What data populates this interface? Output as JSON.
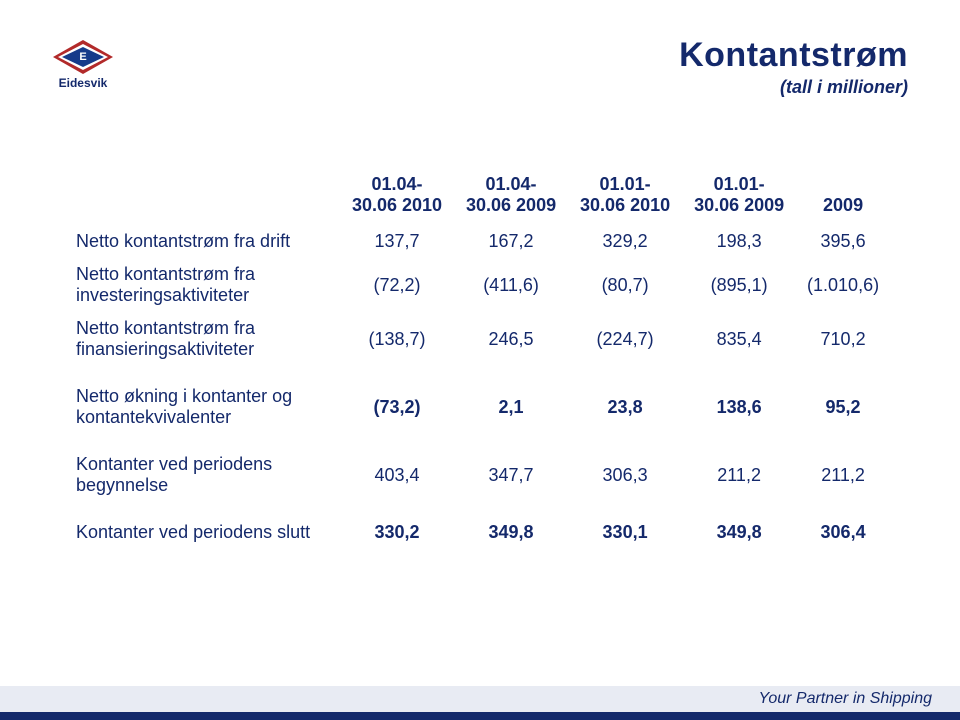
{
  "logo": {
    "letter": "E",
    "name": "Eidesvik",
    "colors": {
      "outer": "#b22a2a",
      "mid": "#ffffff",
      "inner": "#163b8a",
      "text": "#14296b"
    }
  },
  "header": {
    "title": "Kontantstrøm",
    "subtitle": "(tall i millioner)",
    "title_color": "#14296b",
    "title_fontsize": 34,
    "subtitle_fontsize": 18
  },
  "table": {
    "type": "table",
    "text_color": "#14296b",
    "background_color": "#ffffff",
    "fontsize": 18,
    "columns": [
      {
        "line1": "01.04-",
        "line2": "30.06 2010"
      },
      {
        "line1": "01.04-",
        "line2": "30.06 2009"
      },
      {
        "line1": "01.01-",
        "line2": "30.06 2010"
      },
      {
        "line1": "01.01-",
        "line2": "30.06 2009"
      },
      {
        "line1": "",
        "line2": "2009"
      }
    ],
    "rows": [
      {
        "label": "Netto kontantstrøm fra drift",
        "values": [
          "137,7",
          "167,2",
          "329,2",
          "198,3",
          "395,6"
        ],
        "bold": false
      },
      {
        "label": "Netto kontantstrøm fra investeringsaktiviteter",
        "values": [
          "(72,2)",
          "(411,6)",
          "(80,7)",
          "(895,1)",
          "(1.010,6)"
        ],
        "bold": false
      },
      {
        "label": "Netto kontantstrøm fra finansieringsaktiviteter",
        "values": [
          "(138,7)",
          "246,5",
          "(224,7)",
          "835,4",
          "710,2"
        ],
        "bold": false
      },
      {
        "label": "Netto økning i kontanter og kontantekvivalenter",
        "values": [
          "(73,2)",
          "2,1",
          "23,8",
          "138,6",
          "95,2"
        ],
        "bold": true,
        "gap_before": true
      },
      {
        "label": "Kontanter ved periodens begynnelse",
        "values": [
          "403,4",
          "347,7",
          "306,3",
          "211,2",
          "211,2"
        ],
        "bold": false,
        "gap_before": true
      },
      {
        "label": "Kontanter ved periodens slutt",
        "values": [
          "330,2",
          "349,8",
          "330,1",
          "349,8",
          "306,4"
        ],
        "bold": true,
        "gap_before": true
      }
    ]
  },
  "footer": {
    "text": "Your Partner in Shipping",
    "light_color": "#e8ebf3",
    "dark_color": "#14296b",
    "text_color": "#14296b"
  }
}
